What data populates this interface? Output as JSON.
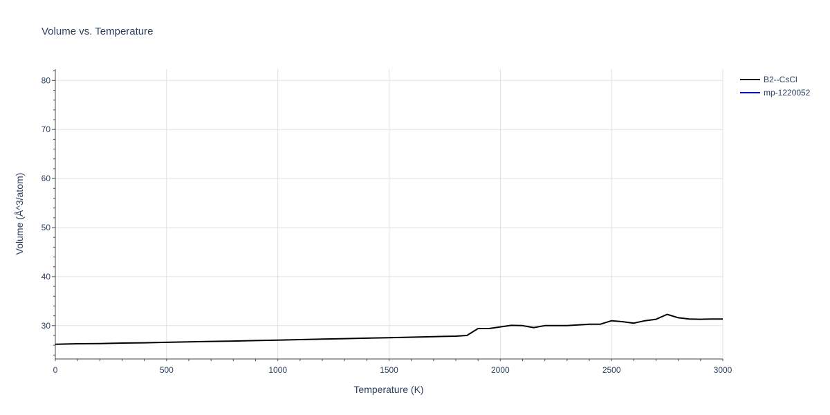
{
  "chart_data": {
    "type": "line",
    "title": "Volume vs. Temperature",
    "xlabel": "Temperature (K)",
    "ylabel": "Volume (Å^3/atom)",
    "xlim": [
      0,
      3000
    ],
    "ylim": [
      23.2,
      82.3
    ],
    "xticks": [
      0,
      500,
      1000,
      1500,
      2000,
      2500,
      3000
    ],
    "yticks": [
      30,
      40,
      50,
      60,
      70,
      80
    ],
    "grid": true,
    "legend_position": "top-right",
    "series": [
      {
        "name": "B2--CsCl",
        "color": "#000000",
        "x": [
          0,
          100,
          200,
          300,
          400,
          500,
          600,
          700,
          800,
          900,
          1000,
          1100,
          1200,
          1300,
          1400,
          1500,
          1600,
          1700,
          1800,
          1850,
          1900,
          1950,
          2000,
          2050,
          2100,
          2150,
          2200,
          2250,
          2300,
          2350,
          2400,
          2450,
          2500,
          2550,
          2600,
          2650,
          2700,
          2750,
          2800,
          2850,
          2900,
          2950,
          3000
        ],
        "y": [
          26.2,
          26.3,
          26.35,
          26.45,
          26.5,
          26.6,
          26.7,
          26.78,
          26.85,
          26.95,
          27.05,
          27.15,
          27.25,
          27.35,
          27.45,
          27.55,
          27.65,
          27.75,
          27.85,
          28.0,
          29.4,
          29.4,
          29.75,
          30.05,
          30.0,
          29.6,
          30.0,
          30.0,
          30.0,
          30.15,
          30.3,
          30.3,
          31.0,
          30.8,
          30.5,
          31.0,
          31.3,
          32.3,
          31.6,
          31.35,
          31.3,
          31.35,
          31.35
        ]
      },
      {
        "name": "mp-1220052",
        "color": "#0000ff",
        "x": [],
        "y": []
      }
    ]
  }
}
